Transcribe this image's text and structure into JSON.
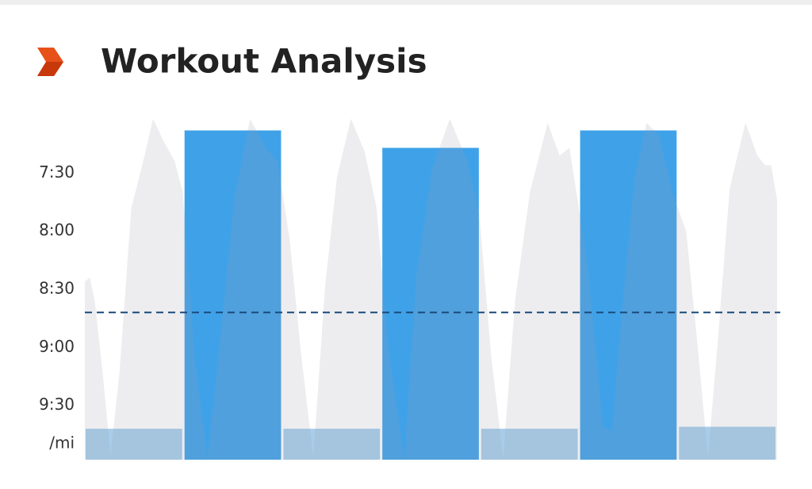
{
  "chart_data": {
    "type": "bar",
    "title": "Workout Analysis",
    "y_unit_label": "/mi",
    "categories": [
      null,
      null,
      null,
      null,
      null,
      null,
      null
    ],
    "values": [
      582,
      428,
      582,
      437,
      582,
      428,
      581
    ],
    "colors": [
      "#a8cdea",
      "#3fa2e8",
      "#a8cdea",
      "#3fa2e8",
      "#a8cdea",
      "#3fa2e8",
      "#a8cdea"
    ],
    "ylim": [
      598,
      420
    ],
    "yticks": [
      {
        "value": 450,
        "label": "7:30"
      },
      {
        "value": 480,
        "label": "8:00"
      },
      {
        "value": 510,
        "label": "8:30"
      },
      {
        "value": 540,
        "label": "9:00"
      },
      {
        "value": 570,
        "label": "9:30"
      }
    ],
    "average": 522,
    "average_color": "#1a4a7a",
    "pace_trace": {
      "color": "#9a9aae",
      "xlim": [
        0,
        7
      ],
      "x": [
        0,
        0.05,
        0.1,
        0.18,
        0.26,
        0.35,
        0.47,
        0.59,
        0.69,
        0.79,
        0.91,
        0.99,
        1.11,
        1.24,
        1.39,
        1.51,
        1.67,
        1.83,
        1.95,
        2.07,
        2.19,
        2.31,
        2.43,
        2.55,
        2.69,
        2.83,
        2.95,
        3.07,
        3.23,
        3.35,
        3.51,
        3.69,
        3.87,
        3.99,
        4.11,
        4.23,
        4.35,
        4.5,
        4.68,
        4.8,
        4.9,
        5.08,
        5.24,
        5.33,
        5.44,
        5.56,
        5.68,
        5.81,
        5.94,
        6.08,
        6.2,
        6.3,
        6.4,
        6.52,
        6.68,
        6.8,
        6.88,
        6.94,
        7.0
      ],
      "values": [
        506,
        504,
        516,
        553,
        596,
        553,
        468,
        444,
        422,
        433,
        444,
        460,
        545,
        597,
        525,
        464,
        422,
        437,
        444,
        484,
        545,
        597,
        508,
        452,
        422,
        439,
        468,
        541,
        597,
        504,
        448,
        422,
        444,
        472,
        545,
        597,
        516,
        460,
        424,
        441,
        437,
        496,
        581,
        583,
        516,
        452,
        424,
        431,
        460,
        480,
        541,
        597,
        537,
        458,
        424,
        441,
        446,
        446,
        464
      ]
    }
  }
}
